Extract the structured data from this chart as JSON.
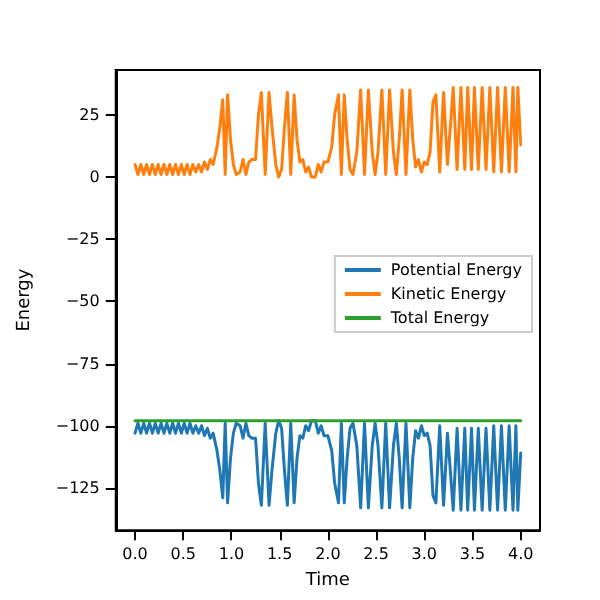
{
  "chart_data": {
    "type": "line",
    "xlabel": "Time",
    "ylabel": "Energy",
    "x": [
      0,
      0.03,
      0.06,
      0.09,
      0.12,
      0.15,
      0.18,
      0.21,
      0.24,
      0.27,
      0.3,
      0.33,
      0.36,
      0.39,
      0.42,
      0.45,
      0.48,
      0.51,
      0.54,
      0.57,
      0.6,
      0.63,
      0.66,
      0.69,
      0.72,
      0.75,
      0.78,
      0.81,
      0.85,
      0.88,
      0.91,
      0.935,
      0.96,
      0.99,
      1.02,
      1.05,
      1.09,
      1.12,
      1.15,
      1.18,
      1.21,
      1.25,
      1.28,
      1.31,
      1.35,
      1.39,
      1.42,
      1.46,
      1.49,
      1.52,
      1.55,
      1.58,
      1.615,
      1.65,
      1.68,
      1.71,
      1.74,
      1.77,
      1.8,
      1.83,
      1.87,
      1.9,
      1.93,
      1.96,
      2,
      2.04,
      2.07,
      2.11,
      2.14,
      2.17,
      2.2,
      2.23,
      2.26,
      2.3,
      2.34,
      2.38,
      2.42,
      2.46,
      2.49,
      2.52,
      2.56,
      2.6,
      2.64,
      2.68,
      2.71,
      2.74,
      2.77,
      2.81,
      2.85,
      2.88,
      2.91,
      2.94,
      2.97,
      3,
      3.03,
      3.06,
      3.09,
      3.12,
      3.16,
      3.2,
      3.24,
      3.27,
      3.3,
      3.34,
      3.38,
      3.42,
      3.45,
      3.49,
      3.52,
      3.56,
      3.6,
      3.64,
      3.68,
      3.72,
      3.76,
      3.8,
      3.84,
      3.88,
      3.92,
      3.95,
      3.97,
      4
    ],
    "series": [
      {
        "name": "Potential Energy",
        "color": "#1f77b4",
        "values": [
          -103,
          -99,
          -103,
          -99,
          -103,
          -99,
          -103,
          -99,
          -103,
          -99,
          -103,
          -99,
          -103,
          -99,
          -103,
          -99,
          -103,
          -99,
          -103,
          -99,
          -103,
          -100,
          -103,
          -100,
          -104,
          -101,
          -105,
          -103,
          -110,
          -118,
          -129,
          -99,
          -131,
          -113,
          -103,
          -99,
          -100,
          -105,
          -99,
          -104,
          -105,
          -105,
          -123,
          -132,
          -99,
          -132,
          -118,
          -103,
          -98,
          -101,
          -118,
          -132,
          -99,
          -131,
          -113,
          -104,
          -105,
          -100,
          -102,
          -98,
          -98,
          -103,
          -100,
          -104,
          -104,
          -110,
          -123,
          -131,
          -99,
          -131,
          -113,
          -101,
          -99,
          -108,
          -133,
          -99,
          -133,
          -108,
          -99,
          -108,
          -133,
          -99,
          -133,
          -108,
          -99,
          -113,
          -133,
          -99,
          -133,
          -113,
          -102,
          -105,
          -100,
          -104,
          -103,
          -108,
          -128,
          -131,
          -100,
          -132,
          -103,
          -118,
          -134,
          -101,
          -134,
          -101,
          -134,
          -101,
          -134,
          -101,
          -134,
          -101,
          -134,
          -100,
          -134,
          -100,
          -134,
          -100,
          -134,
          -100,
          -134,
          -111
        ]
      },
      {
        "name": "Kinetic Energy",
        "color": "#ff7f0e",
        "values": [
          5,
          1,
          5,
          1,
          5,
          1,
          5,
          1,
          5,
          1,
          5,
          1,
          5,
          1,
          5,
          1,
          5,
          1,
          5,
          1,
          5,
          2,
          5,
          2,
          6,
          3,
          7,
          5,
          12,
          20,
          31,
          1,
          33,
          15,
          5,
          1,
          2,
          7,
          1,
          6,
          7,
          7,
          25,
          34,
          1,
          34,
          20,
          5,
          0,
          3,
          20,
          34,
          1,
          33,
          15,
          6,
          7,
          2,
          4,
          0,
          0,
          5,
          2,
          6,
          6,
          12,
          25,
          33,
          1,
          33,
          15,
          3,
          1,
          10,
          35,
          1,
          35,
          10,
          1,
          10,
          35,
          1,
          35,
          10,
          1,
          15,
          35,
          1,
          35,
          15,
          4,
          7,
          2,
          6,
          5,
          10,
          30,
          33,
          2,
          34,
          5,
          20,
          36,
          3,
          36,
          3,
          36,
          3,
          36,
          3,
          36,
          3,
          36,
          2,
          36,
          2,
          36,
          2,
          36,
          2,
          36,
          13
        ]
      },
      {
        "name": "Total Energy",
        "color": "#2ca02c",
        "x": [
          0,
          4
        ],
        "values": [
          -98,
          -98
        ]
      }
    ],
    "xlim": [
      -0.2,
      4.2
    ],
    "xticks": [
      {
        "value": 0,
        "label": "0.0"
      },
      0.5,
      {
        "value": 1,
        "label": "1.0"
      },
      1.5,
      {
        "value": 2,
        "label": "2.0"
      },
      2.5,
      {
        "value": 3,
        "label": "3.0"
      },
      3.5,
      {
        "value": 4,
        "label": "4.0"
      }
    ],
    "ylim": [
      -142,
      43
    ],
    "yticks": [
      {
        "value": -125,
        "label": "−125"
      },
      {
        "value": -100,
        "label": "−100"
      },
      {
        "value": -75,
        "label": "−75"
      },
      {
        "value": -50,
        "label": "−50"
      },
      {
        "value": -25,
        "label": "−25"
      },
      0,
      25
    ],
    "grid": false,
    "legend": "right",
    "marker": "none",
    "line_style": "solid"
  }
}
